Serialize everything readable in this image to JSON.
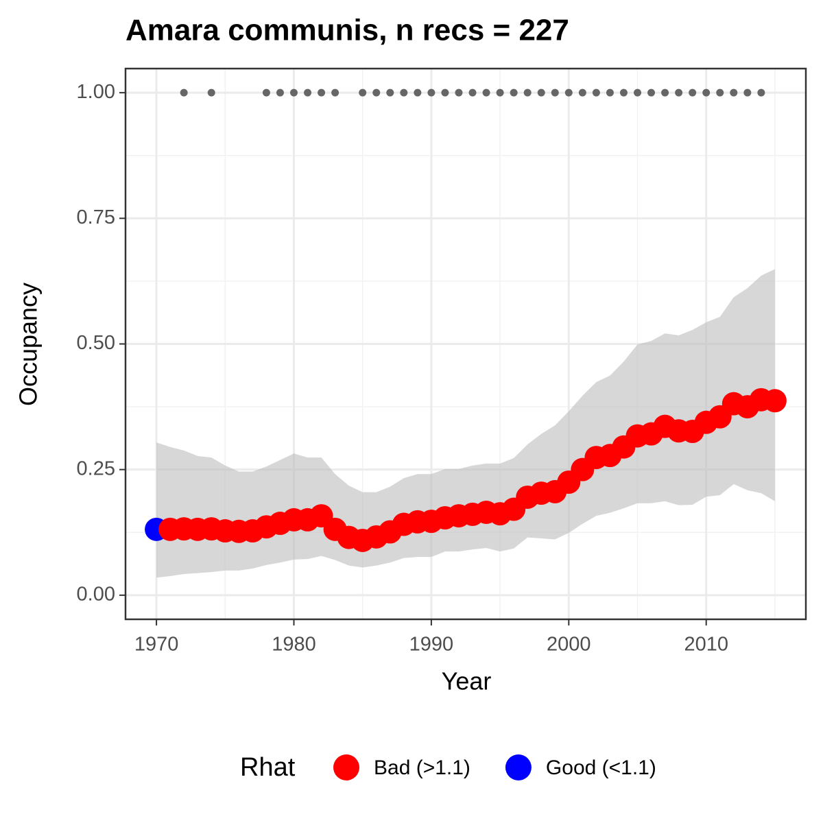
{
  "chart_data": {
    "type": "scatter",
    "title": "Amara communis, n recs = 227",
    "x_label": "Year",
    "y_label": "Occupancy",
    "legend_title": "Rhat",
    "x": [
      1970,
      1971,
      1972,
      1973,
      1974,
      1975,
      1976,
      1977,
      1978,
      1979,
      1980,
      1981,
      1982,
      1983,
      1984,
      1985,
      1986,
      1987,
      1988,
      1989,
      1990,
      1991,
      1992,
      1993,
      1994,
      1995,
      1996,
      1997,
      1998,
      1999,
      2000,
      2001,
      2002,
      2003,
      2004,
      2005,
      2006,
      2007,
      2008,
      2009,
      2010,
      2011,
      2012,
      2013,
      2014,
      2015
    ],
    "series": [
      {
        "name": "Bad (>1.1)",
        "color": "#ff0000",
        "values": [
          null,
          0.131,
          0.132,
          0.131,
          0.132,
          0.128,
          0.127,
          0.128,
          0.136,
          0.143,
          0.15,
          0.15,
          0.158,
          0.131,
          0.115,
          0.109,
          0.116,
          0.126,
          0.141,
          0.146,
          0.147,
          0.154,
          0.158,
          0.161,
          0.165,
          0.162,
          0.171,
          0.195,
          0.203,
          0.206,
          0.225,
          0.25,
          0.274,
          0.278,
          0.295,
          0.317,
          0.321,
          0.336,
          0.327,
          0.326,
          0.344,
          0.355,
          0.381,
          0.375,
          0.389,
          0.387
        ]
      },
      {
        "name": "Good (<1.1)",
        "color": "#0000ff",
        "values": [
          0.131,
          null,
          null,
          null,
          null,
          null,
          null,
          null,
          null,
          null,
          null,
          null,
          null,
          null,
          null,
          null,
          null,
          null,
          null,
          null,
          null,
          null,
          null,
          null,
          null,
          null,
          null,
          null,
          null,
          null,
          null,
          null,
          null,
          null,
          null,
          null,
          null,
          null,
          null,
          null,
          null,
          null,
          null,
          null,
          null,
          null
        ]
      }
    ],
    "band": {
      "color": "#bdbdbd",
      "upper": [
        0.304,
        0.295,
        0.288,
        0.277,
        0.274,
        0.258,
        0.246,
        0.246,
        0.256,
        0.269,
        0.282,
        0.274,
        0.274,
        0.241,
        0.218,
        0.205,
        0.205,
        0.216,
        0.233,
        0.241,
        0.241,
        0.251,
        0.251,
        0.258,
        0.262,
        0.262,
        0.273,
        0.3,
        0.321,
        0.338,
        0.366,
        0.397,
        0.424,
        0.437,
        0.465,
        0.499,
        0.506,
        0.521,
        0.517,
        0.528,
        0.543,
        0.554,
        0.593,
        0.611,
        0.636,
        0.649
      ],
      "lower": [
        0.035,
        0.038,
        0.042,
        0.044,
        0.046,
        0.049,
        0.049,
        0.053,
        0.06,
        0.065,
        0.071,
        0.072,
        0.078,
        0.07,
        0.059,
        0.055,
        0.059,
        0.065,
        0.074,
        0.076,
        0.076,
        0.087,
        0.087,
        0.091,
        0.094,
        0.087,
        0.093,
        0.115,
        0.113,
        0.111,
        0.124,
        0.142,
        0.158,
        0.164,
        0.173,
        0.183,
        0.183,
        0.187,
        0.179,
        0.18,
        0.196,
        0.199,
        0.221,
        0.209,
        0.203,
        0.187
      ]
    },
    "records": {
      "color": "#666666",
      "x": [
        1972,
        1974,
        1978,
        1979,
        1980,
        1981,
        1982,
        1983,
        1985,
        1986,
        1987,
        1988,
        1989,
        1990,
        1991,
        1992,
        1993,
        1994,
        1995,
        1996,
        1997,
        1998,
        1999,
        2000,
        2001,
        2002,
        2003,
        2004,
        2005,
        2006,
        2007,
        2008,
        2009,
        2010,
        2011,
        2012,
        2013,
        2014
      ],
      "values": [
        1,
        1,
        1,
        1,
        1,
        1,
        1,
        1,
        1,
        1,
        1,
        1,
        1,
        1,
        1,
        1,
        1,
        1,
        1,
        1,
        1,
        1,
        1,
        1,
        1,
        1,
        1,
        1,
        1,
        1,
        1,
        1,
        1,
        1,
        1,
        1,
        1,
        1
      ]
    },
    "xlim": [
      1967.75,
      2017.25
    ],
    "ylim": [
      -0.048,
      1.048
    ],
    "xticks": [
      1970,
      1980,
      1990,
      2000,
      2010
    ],
    "yticks": [
      {
        "value": 0,
        "label": "0.00"
      },
      {
        "value": 0.25,
        "label": "0.25"
      },
      {
        "value": 0.5,
        "label": "0.50"
      },
      {
        "value": 0.75,
        "label": "0.75"
      },
      {
        "value": 1,
        "label": "1.00"
      }
    ],
    "grid": true,
    "legend": "bottom"
  }
}
